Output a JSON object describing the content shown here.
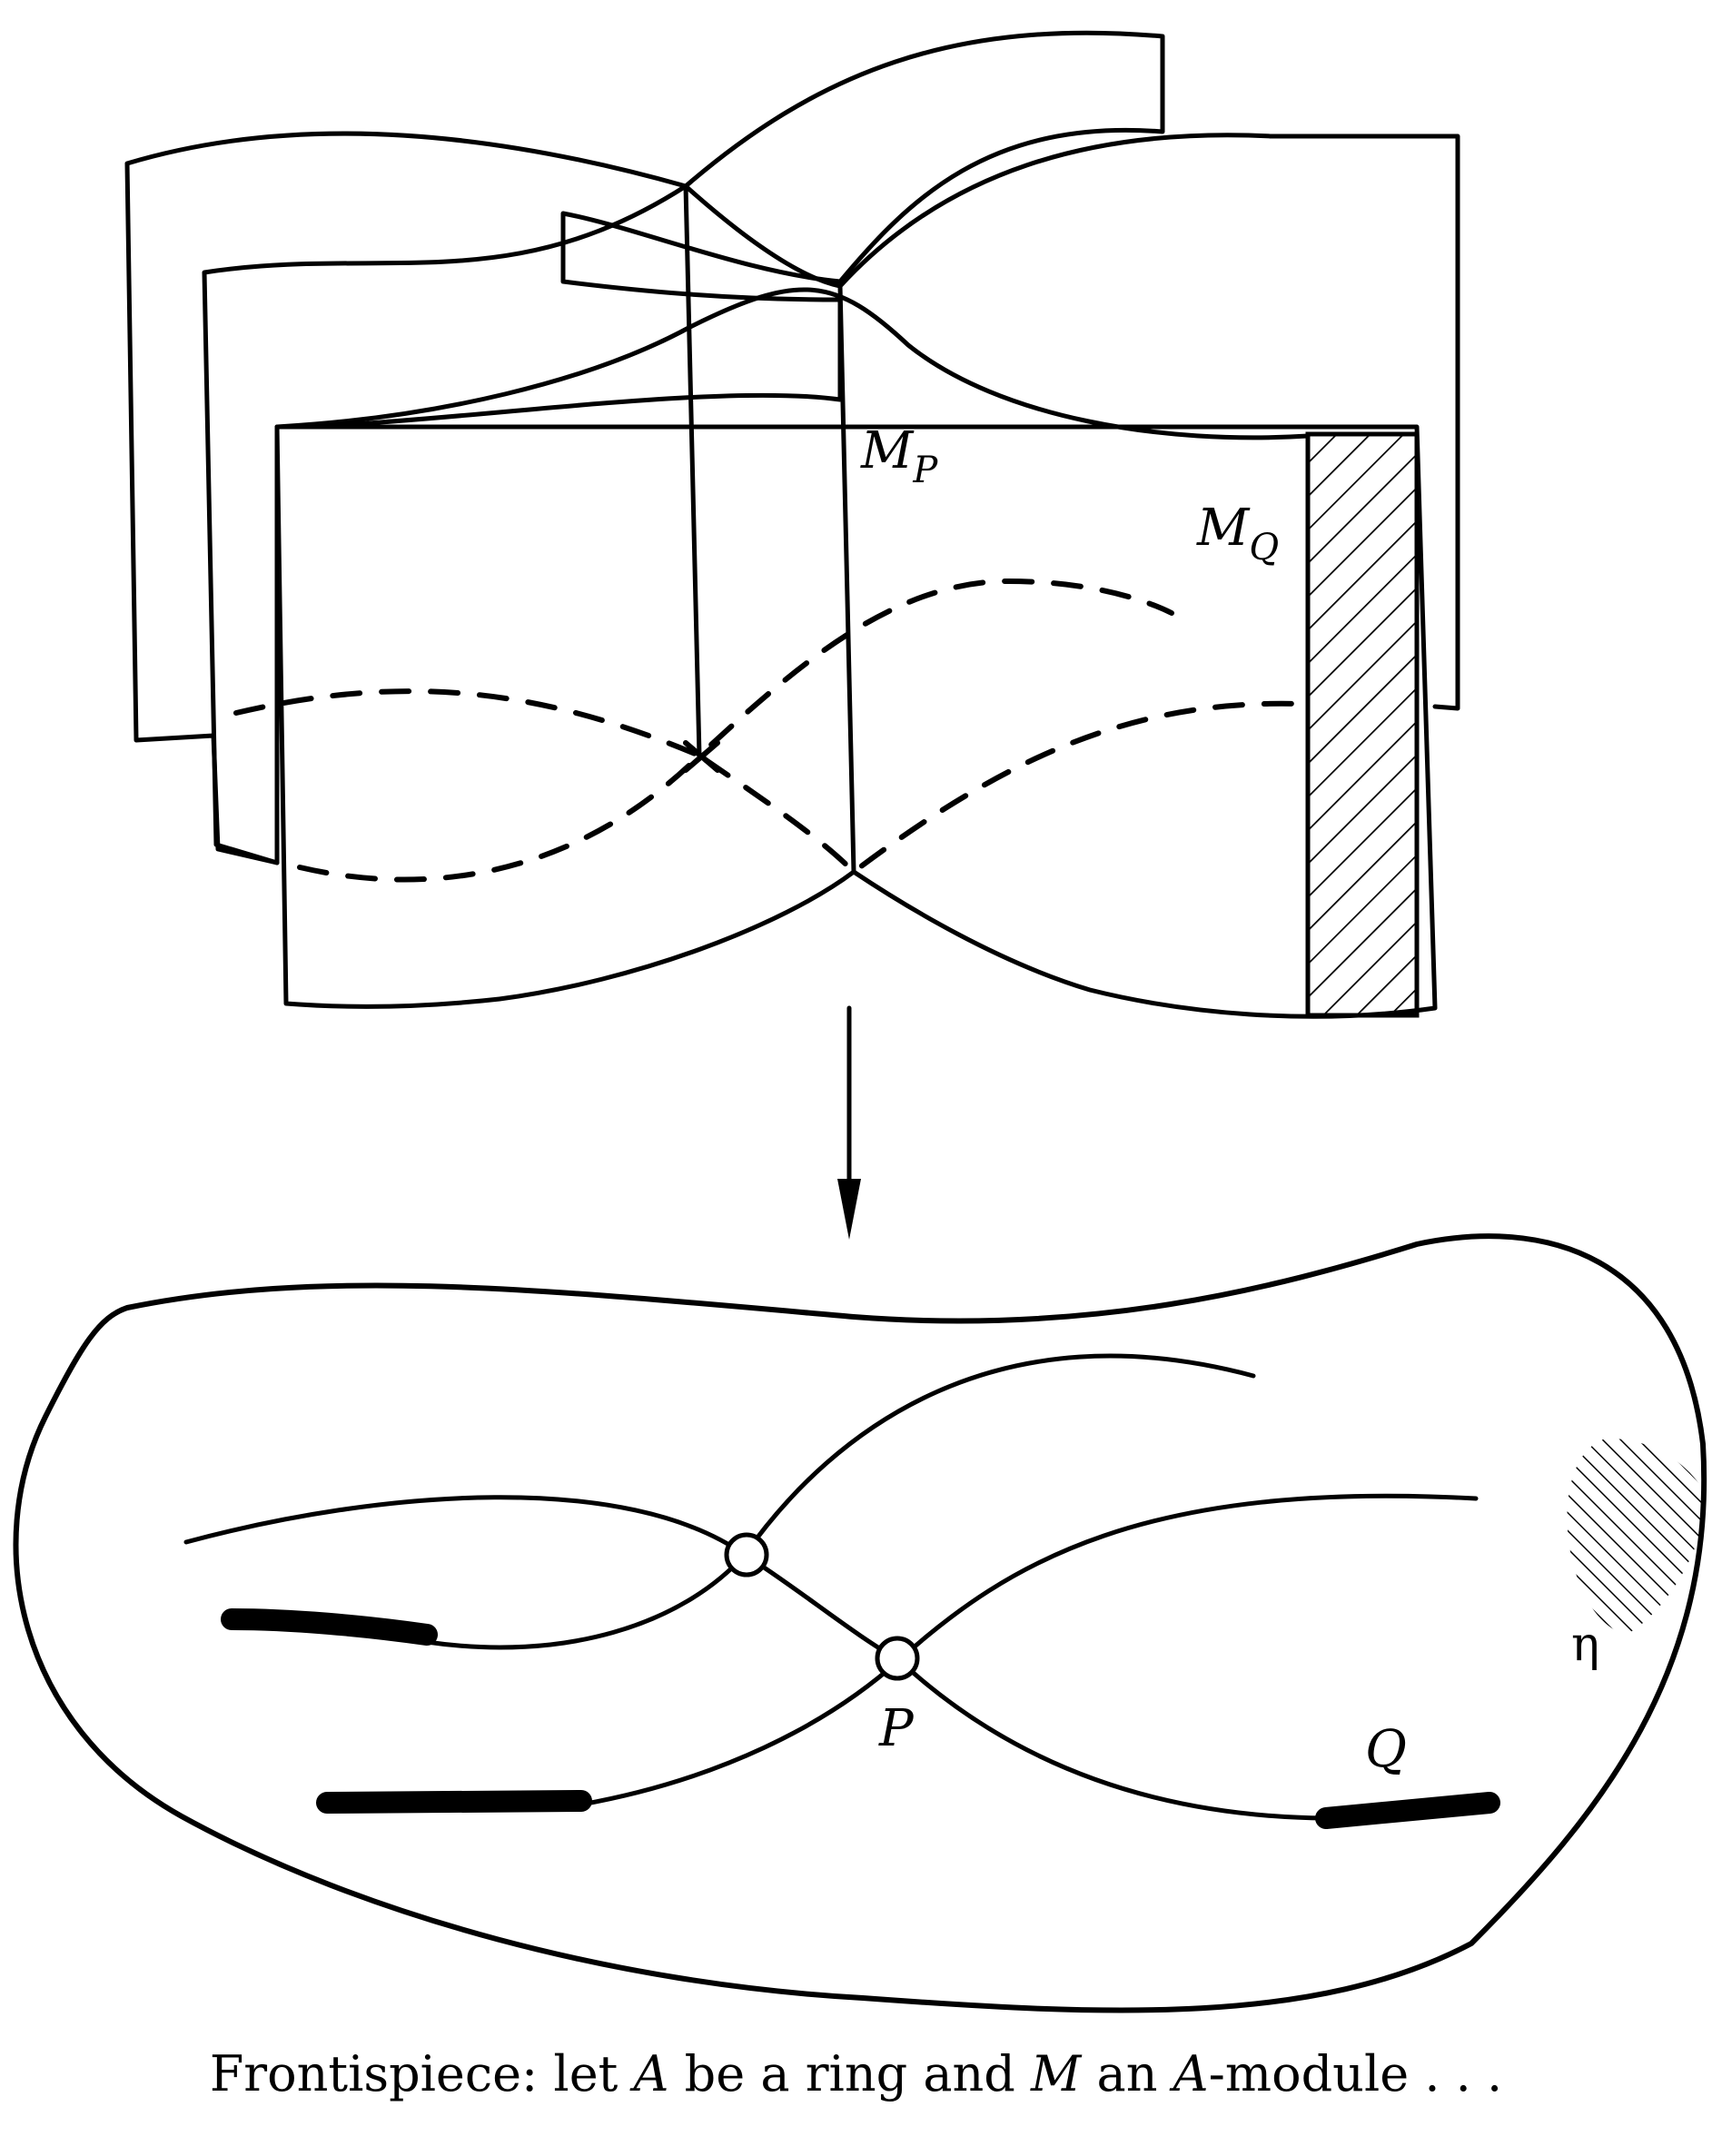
{
  "labels": {
    "module_p": {
      "base": "M",
      "sub": "P"
    },
    "module_q": {
      "base": "M",
      "sub": "Q"
    },
    "point_p": "P",
    "point_q": "Q",
    "generic_point": "η"
  },
  "caption": {
    "prefix": "Frontispiece: let ",
    "ring_symbol": "A",
    "mid_1": " be a ring and ",
    "module_symbol": "M",
    "mid_2": " an ",
    "module_prefix_symbol": "A",
    "suffix": "-module . . ."
  },
  "colors": {
    "ink": "#000000",
    "background": "#ffffff"
  }
}
